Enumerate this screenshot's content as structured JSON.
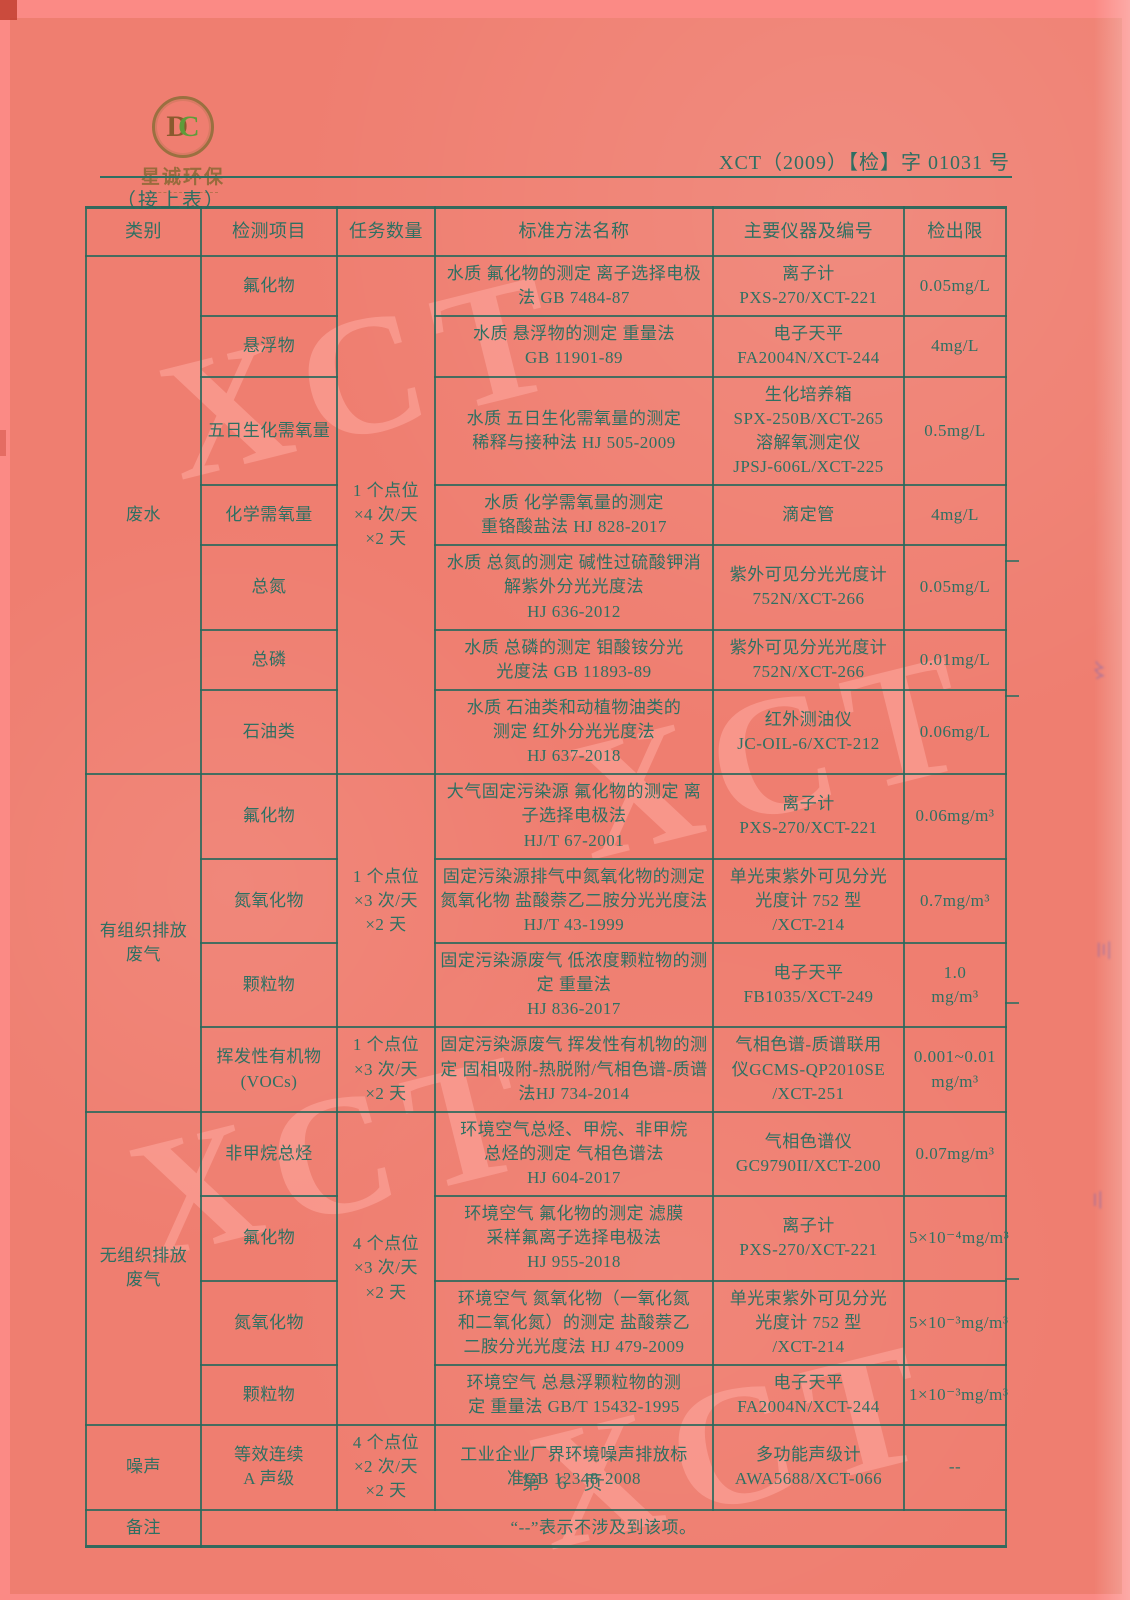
{
  "page": {
    "doc_number": "XCT（2009）【检】字 01031 号",
    "continuation_note": "（接上表）",
    "footer_page": "第 6 页",
    "watermark": "XCT",
    "logo": {
      "name": "星诚环保",
      "monogram_left": "D",
      "monogram_right": "C"
    },
    "colors": {
      "paper": "#ef7e70",
      "margin": "#fb8a85",
      "ink": "#2f7062",
      "grid": "#28685c",
      "logo_brown": "#996b3d",
      "logo_green": "#5f9c3a"
    }
  },
  "table": {
    "headers": [
      "类别",
      "检测项目",
      "任务数量",
      "标准方法名称",
      "主要仪器及编号",
      "检出限"
    ],
    "rows": [
      [
        {
          "t": "废水",
          "rs": 7,
          "cls": "cat",
          "n": "category-cell-wastewater"
        },
        {
          "t": "氟化物",
          "cls": "item"
        },
        {
          "t": "1 个点位\n×4 次/天\n×2 天",
          "rs": 7,
          "cls": "task"
        },
        {
          "t": "水质  氟化物的测定  离子选择电极法  GB 7484-87",
          "cls": "method"
        },
        {
          "t": "离子计\nPXS-270/XCT-221",
          "cls": "instr"
        },
        {
          "t": "0.05mg/L",
          "cls": "limit"
        }
      ],
      [
        {
          "t": "悬浮物",
          "cls": "item"
        },
        {
          "t": "水质  悬浮物的测定  重量法\nGB 11901-89",
          "cls": "method"
        },
        {
          "t": "电子天平\nFA2004N/XCT-244",
          "cls": "instr"
        },
        {
          "t": "4mg/L",
          "cls": "limit"
        }
      ],
      [
        {
          "t": "五日生化需氧量",
          "cls": "item"
        },
        {
          "t": "水质  五日生化需氧量的测定\n稀释与接种法  HJ 505-2009",
          "cls": "method"
        },
        {
          "t": "生化培养箱\nSPX-250B/XCT-265\n溶解氧测定仪\nJPSJ-606L/XCT-225",
          "cls": "instr"
        },
        {
          "t": "0.5mg/L",
          "cls": "limit"
        }
      ],
      [
        {
          "t": "化学需氧量",
          "cls": "item"
        },
        {
          "t": "水质  化学需氧量的测定\n重铬酸盐法  HJ 828-2017",
          "cls": "method"
        },
        {
          "t": "滴定管",
          "cls": "instr"
        },
        {
          "t": "4mg/L",
          "cls": "limit"
        }
      ],
      [
        {
          "t": "总氮",
          "cls": "item"
        },
        {
          "t": "水质  总氮的测定  碱性过硫酸钾消解紫外分光光度法\nHJ 636-2012",
          "cls": "method"
        },
        {
          "t": "紫外可见分光光度计\n752N/XCT-266",
          "cls": "instr"
        },
        {
          "t": "0.05mg/L",
          "cls": "limit"
        }
      ],
      [
        {
          "t": "总磷",
          "cls": "item"
        },
        {
          "t": "水质  总磷的测定  钼酸铵分光\n光度法  GB 11893-89",
          "cls": "method"
        },
        {
          "t": "紫外可见分光光度计\n752N/XCT-266",
          "cls": "instr"
        },
        {
          "t": "0.01mg/L",
          "cls": "limit"
        }
      ],
      [
        {
          "t": "石油类",
          "cls": "item"
        },
        {
          "t": "水质  石油类和动植物油类的\n测定  红外分光光度法\nHJ 637-2018",
          "cls": "method"
        },
        {
          "t": "红外测油仪\nJC-OIL-6/XCT-212",
          "cls": "instr"
        },
        {
          "t": "0.06mg/L",
          "cls": "limit"
        }
      ],
      [
        {
          "t": "有组织排放\n废气",
          "rs": 4,
          "cls": "cat",
          "n": "category-cell-organized-exhaust"
        },
        {
          "t": "氟化物",
          "cls": "item"
        },
        {
          "t": "1 个点位\n×3 次/天\n×2 天",
          "rs": 3,
          "cls": "task"
        },
        {
          "t": "大气固定污染源  氟化物的测定  离子选择电极法\nHJ/T 67-2001",
          "cls": "method"
        },
        {
          "t": "离子计\nPXS-270/XCT-221",
          "cls": "instr"
        },
        {
          "t": "0.06mg/m³",
          "cls": "limit"
        }
      ],
      [
        {
          "t": "氮氧化物",
          "cls": "item"
        },
        {
          "t": "固定污染源排气中氮氧化物的测定  氮氧化物  盐酸萘乙二胺分光光度法  HJ/T 43-1999",
          "cls": "method"
        },
        {
          "t": "单光束紫外可见分光\n光度计 752 型\n/XCT-214",
          "cls": "instr"
        },
        {
          "t": "0.7mg/m³",
          "cls": "limit"
        }
      ],
      [
        {
          "t": "颗粒物",
          "cls": "item"
        },
        {
          "t": "固定污染源废气  低浓度颗粒物的测定  重量法\nHJ 836-2017",
          "cls": "method"
        },
        {
          "t": "电子天平\nFB1035/XCT-249",
          "cls": "instr"
        },
        {
          "t": "1.0\nmg/m³",
          "cls": "limit"
        }
      ],
      [
        {
          "t": "挥发性有机物\n(VOCs)",
          "cls": "item"
        },
        {
          "t": "1 个点位\n×3 次/天\n×2 天",
          "cls": "task"
        },
        {
          "t": "固定污染源废气  挥发性有机物的测定  固相吸附-热脱附/气相色谱-质谱法HJ 734-2014",
          "cls": "method"
        },
        {
          "t": "气相色谱-质谱联用\n仪GCMS-QP2010SE\n/XCT-251",
          "cls": "instr"
        },
        {
          "t": "0.001~0.01\nmg/m³",
          "cls": "limit"
        }
      ],
      [
        {
          "t": "无组织排放\n废气",
          "rs": 4,
          "cls": "cat",
          "n": "category-cell-fugitive-exhaust"
        },
        {
          "t": "非甲烷总烃",
          "cls": "item"
        },
        {
          "t": "4 个点位\n×3 次/天\n×2 天",
          "rs": 4,
          "cls": "task"
        },
        {
          "t": "环境空气总烃、甲烷、非甲烷\n总烃的测定  气相色谱法\nHJ 604-2017",
          "cls": "method"
        },
        {
          "t": "气相色谱仪\nGC9790II/XCT-200",
          "cls": "instr"
        },
        {
          "t": "0.07mg/m³",
          "cls": "limit"
        }
      ],
      [
        {
          "t": "氟化物",
          "cls": "item"
        },
        {
          "t": "环境空气  氟化物的测定  滤膜\n采样氟离子选择电极法\nHJ 955-2018",
          "cls": "method"
        },
        {
          "t": "离子计\nPXS-270/XCT-221",
          "cls": "instr"
        },
        {
          "t": "5×10⁻⁴mg/m³",
          "cls": "limit"
        }
      ],
      [
        {
          "t": "氮氧化物",
          "cls": "item"
        },
        {
          "t": "环境空气  氮氧化物（一氧化氮\n和二氧化氮）的测定  盐酸萘乙\n二胺分光光度法  HJ 479-2009",
          "cls": "method"
        },
        {
          "t": "单光束紫外可见分光\n光度计 752 型\n/XCT-214",
          "cls": "instr"
        },
        {
          "t": "5×10⁻³mg/m³",
          "cls": "limit"
        }
      ],
      [
        {
          "t": "颗粒物",
          "cls": "item"
        },
        {
          "t": "环境空气  总悬浮颗粒物的测\n定  重量法  GB/T 15432-1995",
          "cls": "method"
        },
        {
          "t": "电子天平\nFA2004N/XCT-244",
          "cls": "instr"
        },
        {
          "t": "1×10⁻³mg/m³",
          "cls": "limit"
        }
      ],
      [
        {
          "t": "噪声",
          "cls": "cat",
          "n": "category-cell-noise"
        },
        {
          "t": "等效连续\nA 声级",
          "cls": "item"
        },
        {
          "t": "4 个点位\n×2 次/天\n×2 天",
          "cls": "task"
        },
        {
          "t": "工业企业厂界环境噪声排放标\n准GB 12348-2008",
          "cls": "method"
        },
        {
          "t": "多功能声级计\nAWA5688/XCT-066",
          "cls": "instr"
        },
        {
          "t": "--",
          "cls": "limit"
        }
      ],
      [
        {
          "t": "备注",
          "cls": "cat",
          "n": "remark-label-cell"
        },
        {
          "t": "“--”表示不涉及到该项。",
          "cs": 5,
          "cls": "remark-text",
          "n": "remark-text-cell"
        }
      ]
    ]
  }
}
